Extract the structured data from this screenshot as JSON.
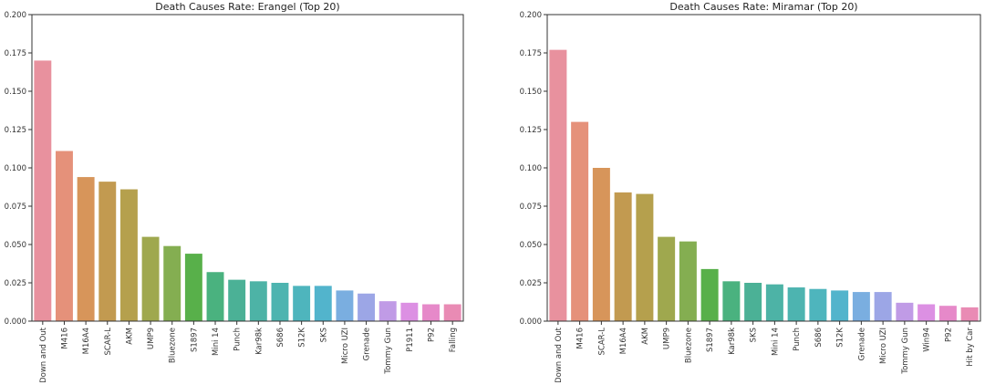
{
  "chart_data": [
    {
      "type": "bar",
      "title": "Death Causes Rate: Erangel (Top 20)",
      "xlabel": "",
      "ylabel": "",
      "ylim": [
        0,
        0.2
      ],
      "yticks": [
        "0.000",
        "0.025",
        "0.050",
        "0.075",
        "0.100",
        "0.125",
        "0.150",
        "0.175",
        "0.200"
      ],
      "categories": [
        "Down and Out",
        "M416",
        "M16A4",
        "SCAR-L",
        "AKM",
        "UMP9",
        "Bluezone",
        "S1897",
        "Mini 14",
        "Punch",
        "Kar98k",
        "S686",
        "S12K",
        "SKS",
        "Micro UZI",
        "Grenade",
        "Tommy Gun",
        "P1911",
        "P92",
        "Falling"
      ],
      "values": [
        0.17,
        0.111,
        0.094,
        0.091,
        0.086,
        0.055,
        0.049,
        0.044,
        0.032,
        0.027,
        0.026,
        0.025,
        0.023,
        0.023,
        0.02,
        0.018,
        0.013,
        0.012,
        0.011,
        0.011
      ],
      "colors": [
        "#e8919e",
        "#e5917a",
        "#d7955a",
        "#c29a50",
        "#b5a04d",
        "#9fa84e",
        "#84ae51",
        "#58b04a",
        "#4ab27f",
        "#4bb196",
        "#4db3a6",
        "#4db4b0",
        "#4eb5bd",
        "#52b4cc",
        "#7aaee0",
        "#9ca6e6",
        "#c09be6",
        "#dc90e3",
        "#e689c9",
        "#e98bb4"
      ]
    },
    {
      "type": "bar",
      "title": "Death Causes Rate: Miramar (Top 20)",
      "xlabel": "",
      "ylabel": "",
      "ylim": [
        0,
        0.2
      ],
      "yticks": [
        "0.000",
        "0.025",
        "0.050",
        "0.075",
        "0.100",
        "0.125",
        "0.150",
        "0.175",
        "0.200"
      ],
      "categories": [
        "Down and Out",
        "M416",
        "SCAR-L",
        "M16A4",
        "AKM",
        "UMP9",
        "Bluezone",
        "S1897",
        "Kar98k",
        "SKS",
        "Mini 14",
        "Punch",
        "S686",
        "S12K",
        "Grenade",
        "Micro UZI",
        "Tommy Gun",
        "Win94",
        "P92",
        "Hit by Car"
      ],
      "values": [
        0.177,
        0.13,
        0.1,
        0.084,
        0.083,
        0.055,
        0.052,
        0.034,
        0.026,
        0.025,
        0.024,
        0.022,
        0.021,
        0.02,
        0.019,
        0.019,
        0.012,
        0.011,
        0.01,
        0.009
      ],
      "colors": [
        "#e8919e",
        "#e5917a",
        "#d7955a",
        "#c29a50",
        "#b5a04d",
        "#9fa84e",
        "#84ae51",
        "#58b04a",
        "#4ab27f",
        "#4bb196",
        "#4db3a6",
        "#4db4b0",
        "#4eb5bd",
        "#52b4cc",
        "#7aaee0",
        "#9ca6e6",
        "#c09be6",
        "#dc90e3",
        "#e689c9",
        "#e98bb4"
      ]
    }
  ]
}
